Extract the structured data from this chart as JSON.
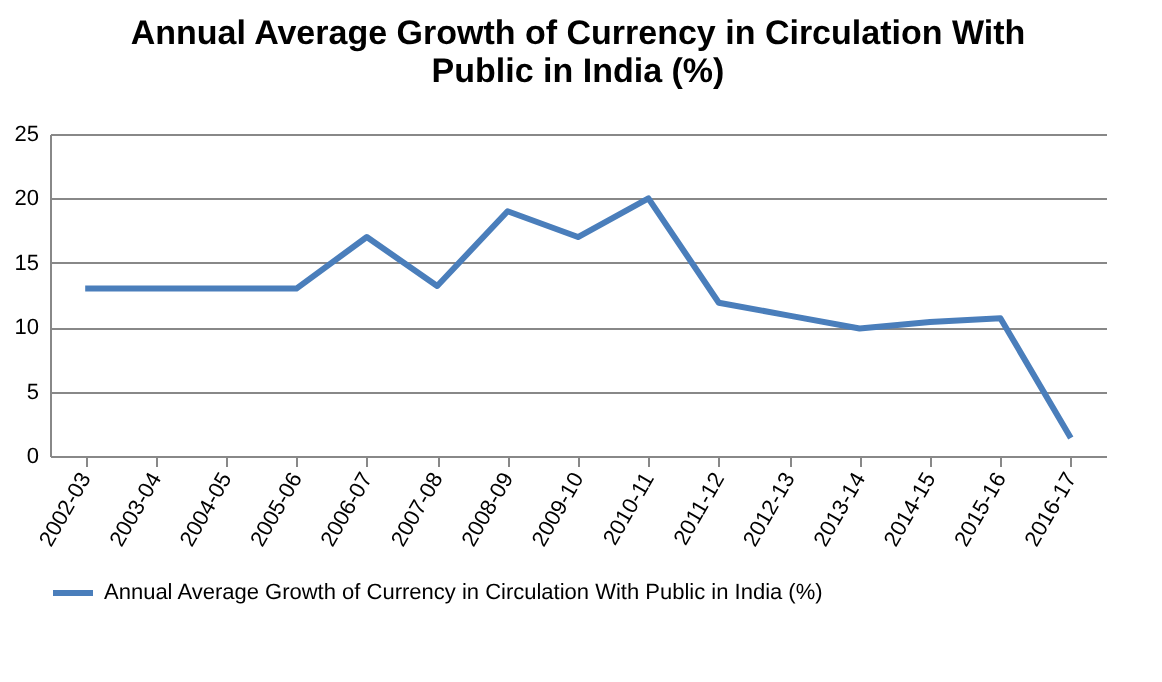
{
  "chart_data": {
    "type": "line",
    "title": "Annual Average Growth of Currency in Circulation With Public in India (%)",
    "categories": [
      "2002-03",
      "2003-04",
      "2004-05",
      "2005-06",
      "2006-07",
      "2007-08",
      "2008-09",
      "2009-10",
      "2010-11",
      "2011-12",
      "2012-13",
      "2013-14",
      "2014-15",
      "2015-16",
      "2016-17"
    ],
    "series": [
      {
        "name": "Annual Average Growth of Currency in Circulation With Public in India (%)",
        "color": "#4a7ebb",
        "values": [
          13,
          13,
          13,
          13,
          17,
          13.2,
          19,
          17,
          20,
          11.9,
          10.9,
          9.9,
          10.4,
          10.7,
          1.4
        ]
      }
    ],
    "ylim": [
      0,
      25
    ],
    "yticks": [
      0,
      5,
      10,
      15,
      20,
      25
    ],
    "grid": "y",
    "legend": "bottom",
    "marker": "none",
    "line_style": "solid"
  }
}
